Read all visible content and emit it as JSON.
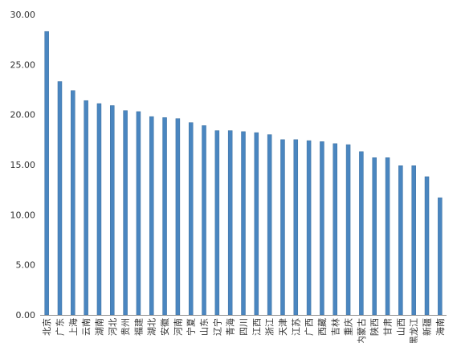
{
  "chart_data": {
    "type": "bar",
    "title": "",
    "xlabel": "",
    "ylabel": "",
    "ylim": [
      0,
      30
    ],
    "yticks": [
      "0.00",
      "5.00",
      "10.00",
      "15.00",
      "20.00",
      "25.00",
      "30.00"
    ],
    "grid": false,
    "legend": "none",
    "bar_color": "#4a86c0",
    "categories": [
      "北京",
      "广东",
      "上海",
      "云南",
      "湖南",
      "河北",
      "贵州",
      "福建",
      "湖北",
      "安徽",
      "河南",
      "宁夏",
      "山东",
      "辽宁",
      "青海",
      "四川",
      "江西",
      "浙江",
      "天津",
      "江苏",
      "广西",
      "西藏",
      "吉林",
      "重庆",
      "内蒙古",
      "陕西",
      "甘肃",
      "山西",
      "黑龙江",
      "新疆",
      "海南"
    ],
    "values": [
      28.3,
      23.3,
      22.4,
      21.4,
      21.1,
      20.9,
      20.4,
      20.3,
      19.8,
      19.7,
      19.6,
      19.2,
      18.9,
      18.4,
      18.4,
      18.3,
      18.2,
      18.0,
      17.5,
      17.5,
      17.4,
      17.3,
      17.1,
      17.0,
      16.3,
      15.7,
      15.7,
      14.9,
      14.9,
      13.8,
      11.7
    ]
  }
}
